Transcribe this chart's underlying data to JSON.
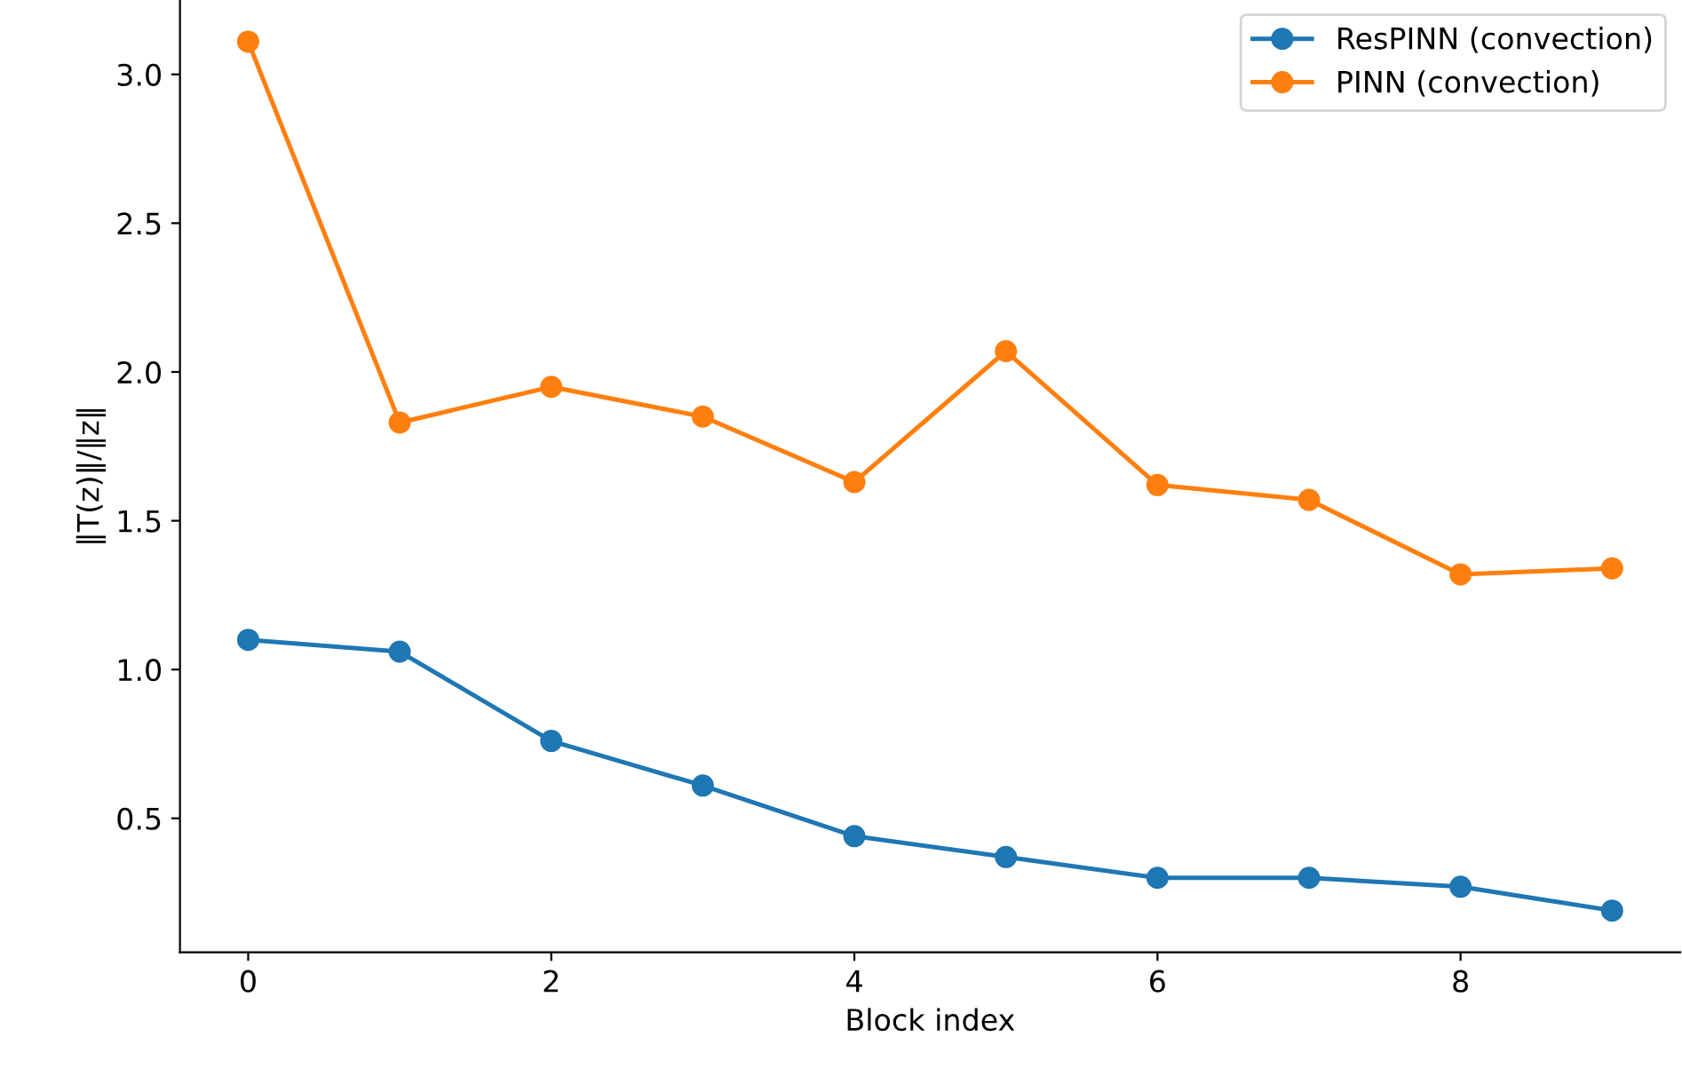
{
  "chart_data": {
    "type": "line",
    "xlabel": "Block index",
    "ylabel": "‖T(z)‖/‖z‖",
    "x": [
      0,
      1,
      2,
      3,
      4,
      5,
      6,
      7,
      8,
      9
    ],
    "series": [
      {
        "name": "ResPINN (convection)",
        "color": "#1f77b4",
        "values": [
          1.1,
          1.06,
          0.76,
          0.61,
          0.44,
          0.37,
          0.3,
          0.3,
          0.27,
          0.19
        ]
      },
      {
        "name": "PINN (convection)",
        "color": "#ff7f0e",
        "values": [
          3.11,
          1.83,
          1.95,
          1.85,
          1.63,
          2.07,
          1.62,
          1.57,
          1.32,
          1.34
        ]
      }
    ],
    "xlim": [
      -0.45,
      9.45
    ],
    "ylim": [
      0.05,
      3.25
    ],
    "xticks": [
      0,
      2,
      4,
      6,
      8
    ],
    "yticks": [
      0.5,
      {
        "value": 1,
        "label": "1.0"
      },
      1.5,
      {
        "value": 2,
        "label": "2.0"
      },
      2.5,
      {
        "value": 3,
        "label": "3.0"
      }
    ],
    "marker": "circle",
    "line_style": "solid",
    "legend": "top right",
    "grid": false
  }
}
